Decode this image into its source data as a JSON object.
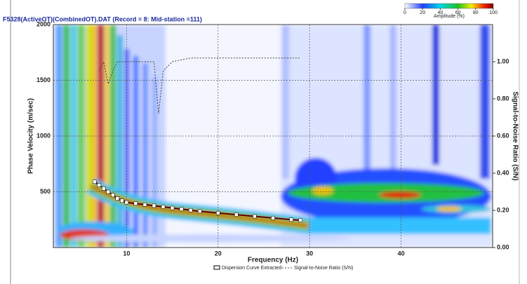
{
  "chart_data": {
    "type": "scatter",
    "title": "F5328(ActiveOT)(CombinedOT).DAT  (Record = 8: Mid-station =111)",
    "xlabel": "Frequency (Hz)",
    "ylabel": "Phase Velocity (m/sec)",
    "y2label": "Signal-to-Noise Ratio (S/N)",
    "xlim": [
      2,
      50
    ],
    "xticks": [
      10,
      20,
      30,
      40
    ],
    "ylim": [
      0,
      2000
    ],
    "yticks": [
      500,
      1000,
      1500,
      2000
    ],
    "y2lim": [
      0,
      1.2
    ],
    "y2ticks": [
      {
        "value": 0,
        "label": "0.00"
      },
      {
        "value": 0.2,
        "label": "0.20"
      },
      {
        "value": 0.4,
        "label": "0.40"
      },
      {
        "value": 0.6,
        "label": "0.60"
      },
      {
        "value": 0.8,
        "label": "0.80"
      },
      {
        "value": 1.0,
        "label": "1.00"
      }
    ],
    "grid": true,
    "colorbar": {
      "label": "Amplitude (%)",
      "lim": [
        0,
        100
      ],
      "ticks": [
        0,
        20,
        40,
        60,
        80,
        100
      ]
    },
    "series": [
      {
        "name": "Dispersion Curve Extracted",
        "type": "scatter",
        "color": "#ffffff",
        "x": [
          6.5,
          7,
          7.5,
          8,
          8.5,
          9,
          9.5,
          10,
          11,
          12,
          13,
          14,
          15,
          16,
          17,
          18,
          20,
          22,
          24,
          26,
          28,
          29
        ],
        "values": [
          590,
          560,
          530,
          500,
          470,
          440,
          420,
          405,
          395,
          385,
          375,
          365,
          355,
          345,
          335,
          325,
          310,
          295,
          280,
          265,
          250,
          245
        ]
      },
      {
        "name": "Signal-to-Noise Ratio (S/N)",
        "type": "line",
        "axis": "y2",
        "color": "#444444",
        "x": [
          7,
          7.5,
          8,
          8.5,
          9,
          10,
          11,
          12,
          13,
          13.5,
          14,
          15,
          17,
          20,
          25,
          29
        ],
        "values": [
          0.95,
          1.0,
          0.88,
          0.95,
          1.0,
          1.0,
          1.0,
          1.0,
          1.0,
          0.72,
          0.95,
          1.0,
          1.02,
          1.02,
          1.02,
          1.02
        ]
      }
    ]
  }
}
